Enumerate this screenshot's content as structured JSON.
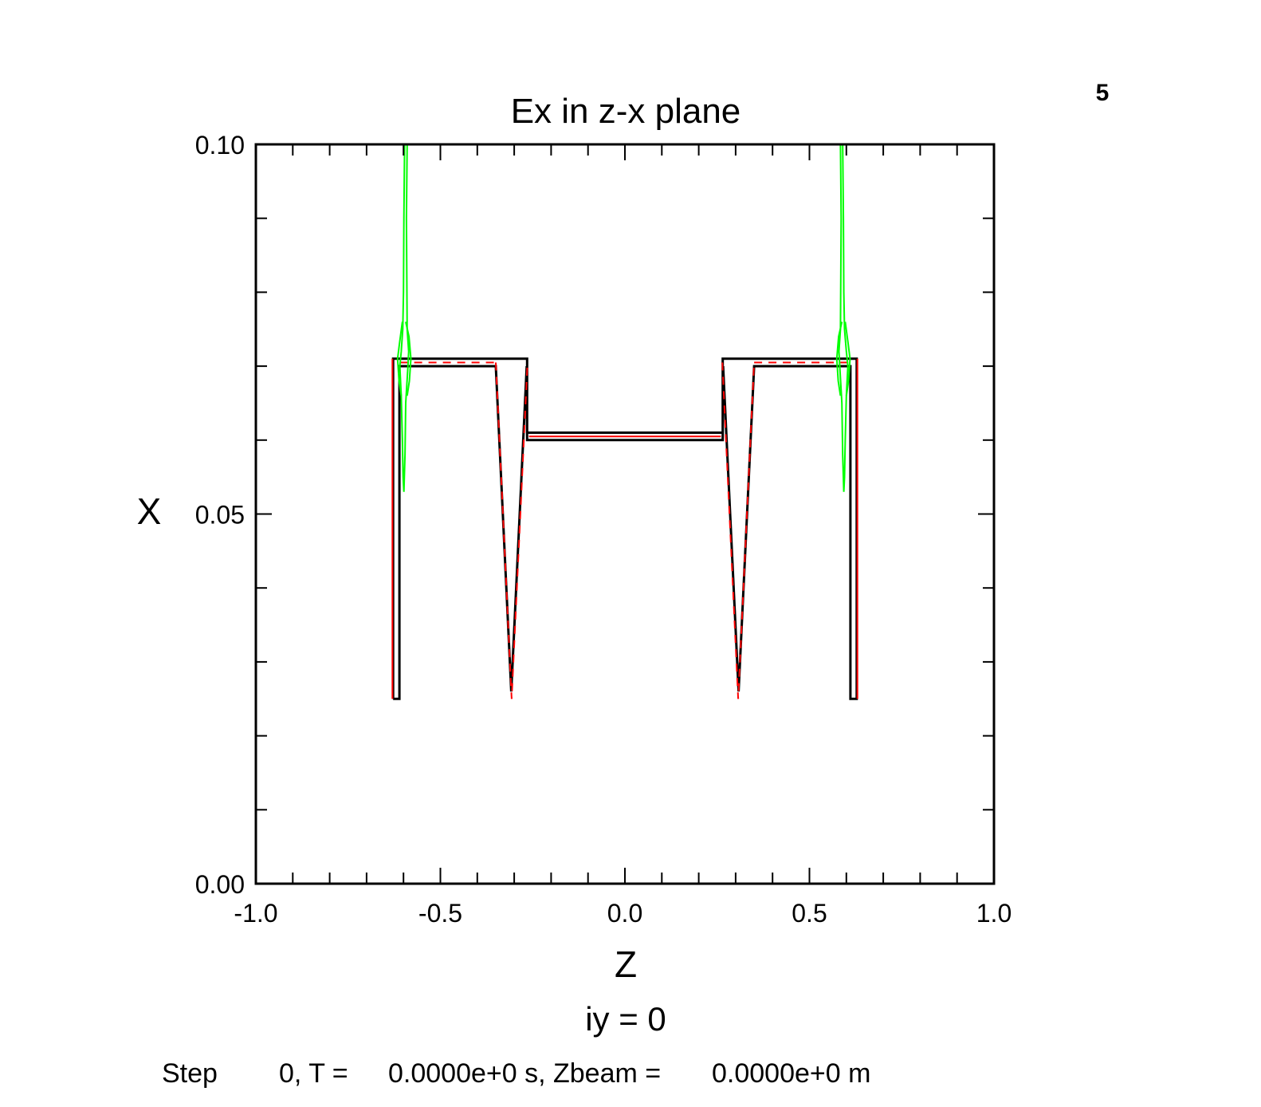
{
  "frame_number": "5",
  "chart_data": {
    "type": "line",
    "title": "Ex in z-x plane",
    "subtitle": "iy = 0",
    "xlabel": "Z",
    "ylabel": "X",
    "xlim": [
      -1.0,
      1.0
    ],
    "ylim": [
      0.0,
      0.1
    ],
    "x_tick_labels": [
      {
        "value": -1.0,
        "label": "-1.0"
      },
      {
        "value": -0.5,
        "label": "-0.5"
      },
      {
        "value": 0.0,
        "label": "0.0"
      },
      {
        "value": 0.5,
        "label": "0.5"
      },
      {
        "value": 1.0,
        "label": "1.0"
      }
    ],
    "y_tick_labels": [
      {
        "value": 0.0,
        "label": "0.00"
      },
      {
        "value": 0.05,
        "label": "0.05"
      },
      {
        "value": 0.1,
        "label": "0.10"
      }
    ],
    "x_minor_step": 0.1,
    "y_minor_step": 0.01,
    "grid": false,
    "colors": {
      "conductor_outline": "#000000",
      "conductor_edge": "#ff0000",
      "field_contour": "#00ff00"
    },
    "series": [
      {
        "role": "conductor-outline",
        "color": "#000000",
        "paths": [
          [
            [
              -0.628,
              0.025
            ],
            [
              -0.628,
              0.071
            ],
            [
              -0.265,
              0.071
            ],
            [
              -0.265,
              0.061
            ],
            [
              0.265,
              0.061
            ],
            [
              0.265,
              0.071
            ],
            [
              0.628,
              0.071
            ],
            [
              0.628,
              0.025
            ],
            [
              0.611,
              0.025
            ],
            [
              0.611,
              0.07
            ],
            [
              0.35,
              0.07
            ],
            [
              0.308,
              0.026
            ],
            [
              0.266,
              0.07
            ],
            [
              0.265,
              0.06
            ],
            [
              -0.265,
              0.06
            ],
            [
              -0.266,
              0.07
            ],
            [
              -0.308,
              0.026
            ],
            [
              -0.35,
              0.07
            ],
            [
              -0.611,
              0.07
            ],
            [
              -0.611,
              0.025
            ],
            [
              -0.628,
              0.025
            ]
          ]
        ]
      },
      {
        "role": "conductor-edge",
        "color": "#ff0000",
        "dashed": false,
        "paths": [
          [
            [
              -0.63,
              0.025
            ],
            [
              -0.63,
              0.071
            ]
          ],
          [
            [
              0.63,
              0.025
            ],
            [
              0.63,
              0.071
            ]
          ],
          [
            [
              -0.26,
              0.0605
            ],
            [
              0.26,
              0.0605
            ]
          ]
        ]
      },
      {
        "role": "conductor-edge-dashed",
        "color": "#ff0000",
        "dashed": true,
        "paths": [
          [
            [
              -0.61,
              0.0705
            ],
            [
              -0.35,
              0.0705
            ]
          ],
          [
            [
              0.35,
              0.0705
            ],
            [
              0.61,
              0.0705
            ]
          ],
          [
            [
              -0.35,
              0.0705
            ],
            [
              -0.307,
              0.025
            ],
            [
              -0.264,
              0.0705
            ]
          ],
          [
            [
              0.264,
              0.0705
            ],
            [
              0.307,
              0.025
            ],
            [
              0.35,
              0.0705
            ]
          ]
        ]
      },
      {
        "role": "field-contour",
        "color": "#00ff00",
        "paths": [
          [
            [
              -0.597,
              0.1
            ],
            [
              -0.599,
              0.09
            ],
            [
              -0.6,
              0.08
            ],
            [
              -0.602,
              0.075
            ],
            [
              -0.606,
              0.072
            ],
            [
              -0.61,
              0.07
            ],
            [
              -0.606,
              0.066
            ],
            [
              -0.603,
              0.06
            ],
            [
              -0.601,
              0.055
            ],
            [
              -0.599,
              0.053
            ],
            [
              -0.596,
              0.058
            ],
            [
              -0.594,
              0.065
            ],
            [
              -0.588,
              0.07
            ],
            [
              -0.586,
              0.072
            ],
            [
              -0.59,
              0.075
            ],
            [
              -0.592,
              0.09
            ],
            [
              -0.59,
              0.1
            ]
          ],
          [
            [
              -0.603,
              0.076
            ],
            [
              -0.611,
              0.073
            ],
            [
              -0.616,
              0.071
            ],
            [
              -0.612,
              0.068
            ],
            [
              -0.606,
              0.066
            ]
          ],
          [
            [
              -0.594,
              0.076
            ],
            [
              -0.585,
              0.074
            ],
            [
              -0.58,
              0.071
            ],
            [
              -0.584,
              0.068
            ],
            [
              -0.59,
              0.066
            ]
          ],
          [
            [
              0.59,
              0.1
            ],
            [
              0.592,
              0.09
            ],
            [
              0.593,
              0.08
            ],
            [
              0.595,
              0.075
            ],
            [
              0.6,
              0.072
            ],
            [
              0.604,
              0.07
            ],
            [
              0.6,
              0.066
            ],
            [
              0.597,
              0.06
            ],
            [
              0.595,
              0.055
            ],
            [
              0.593,
              0.053
            ],
            [
              0.59,
              0.058
            ],
            [
              0.588,
              0.065
            ],
            [
              0.582,
              0.07
            ],
            [
              0.58,
              0.072
            ],
            [
              0.584,
              0.075
            ],
            [
              0.586,
              0.09
            ],
            [
              0.584,
              0.1
            ]
          ],
          [
            [
              0.597,
              0.076
            ],
            [
              0.605,
              0.073
            ],
            [
              0.61,
              0.071
            ],
            [
              0.606,
              0.068
            ],
            [
              0.6,
              0.066
            ]
          ],
          [
            [
              0.588,
              0.076
            ],
            [
              0.579,
              0.074
            ],
            [
              0.574,
              0.071
            ],
            [
              0.578,
              0.068
            ],
            [
              0.584,
              0.066
            ]
          ]
        ]
      }
    ]
  },
  "footer": {
    "step_label": "Step",
    "step_value": "0, T =",
    "time_value": "0.0000e+0 s, Zbeam =",
    "zbeam_value": "0.0000e+0 m"
  }
}
